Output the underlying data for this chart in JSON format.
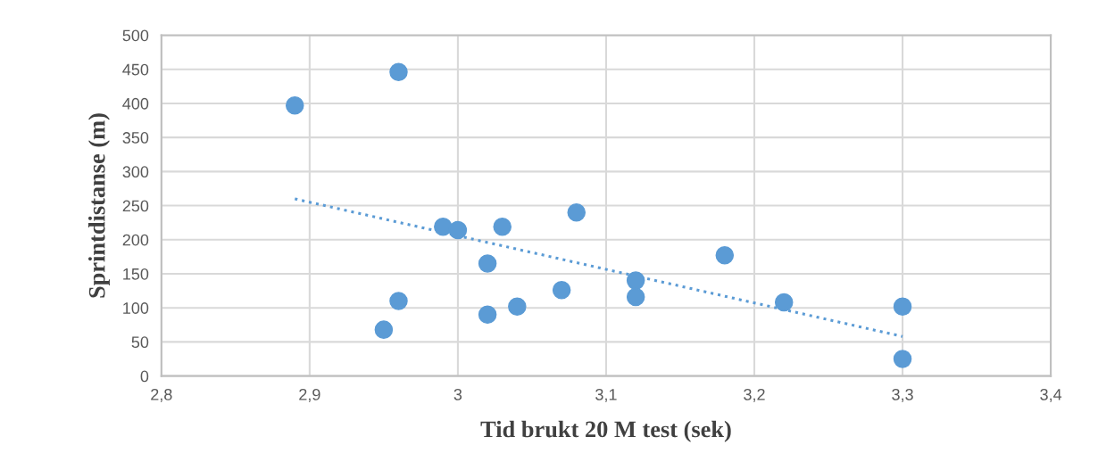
{
  "chart_data": {
    "type": "scatter",
    "xlabel": "Tid brukt 20 M test (sek)",
    "ylabel": "Sprintdistanse (m)",
    "x": [
      2.89,
      2.96,
      2.99,
      3.0,
      3.03,
      3.08,
      3.02,
      2.96,
      2.95,
      3.02,
      3.04,
      3.07,
      3.12,
      3.12,
      3.18,
      3.22,
      3.3,
      3.3
    ],
    "series": [
      {
        "color": "#5b9bd5",
        "values": [
          397,
          446,
          219,
          214,
          219,
          240,
          165,
          110,
          68,
          90,
          102,
          126,
          140,
          116,
          177,
          108,
          102,
          25
        ]
      },
      {
        "type": "line",
        "color": "#5b9bd5",
        "line_style": "dotted",
        "marker": "none",
        "x": [
          2.89,
          3.3
        ],
        "values": [
          260,
          58
        ]
      }
    ],
    "xlim": [
      2.8,
      3.4
    ],
    "ylim": [
      0,
      500
    ],
    "xticks": [
      {
        "value": 2.8,
        "label": "2,8"
      },
      {
        "value": 2.9,
        "label": "2,9"
      },
      {
        "value": 3.0,
        "label": "3"
      },
      {
        "value": 3.1,
        "label": "3,1"
      },
      {
        "value": 3.2,
        "label": "3,2"
      },
      {
        "value": 3.3,
        "label": "3,3"
      },
      {
        "value": 3.4,
        "label": "3,4"
      }
    ],
    "yticks": [
      0,
      50,
      100,
      150,
      200,
      250,
      300,
      350,
      400,
      450,
      500
    ],
    "grid": true,
    "marker": "circle",
    "legend": false
  }
}
